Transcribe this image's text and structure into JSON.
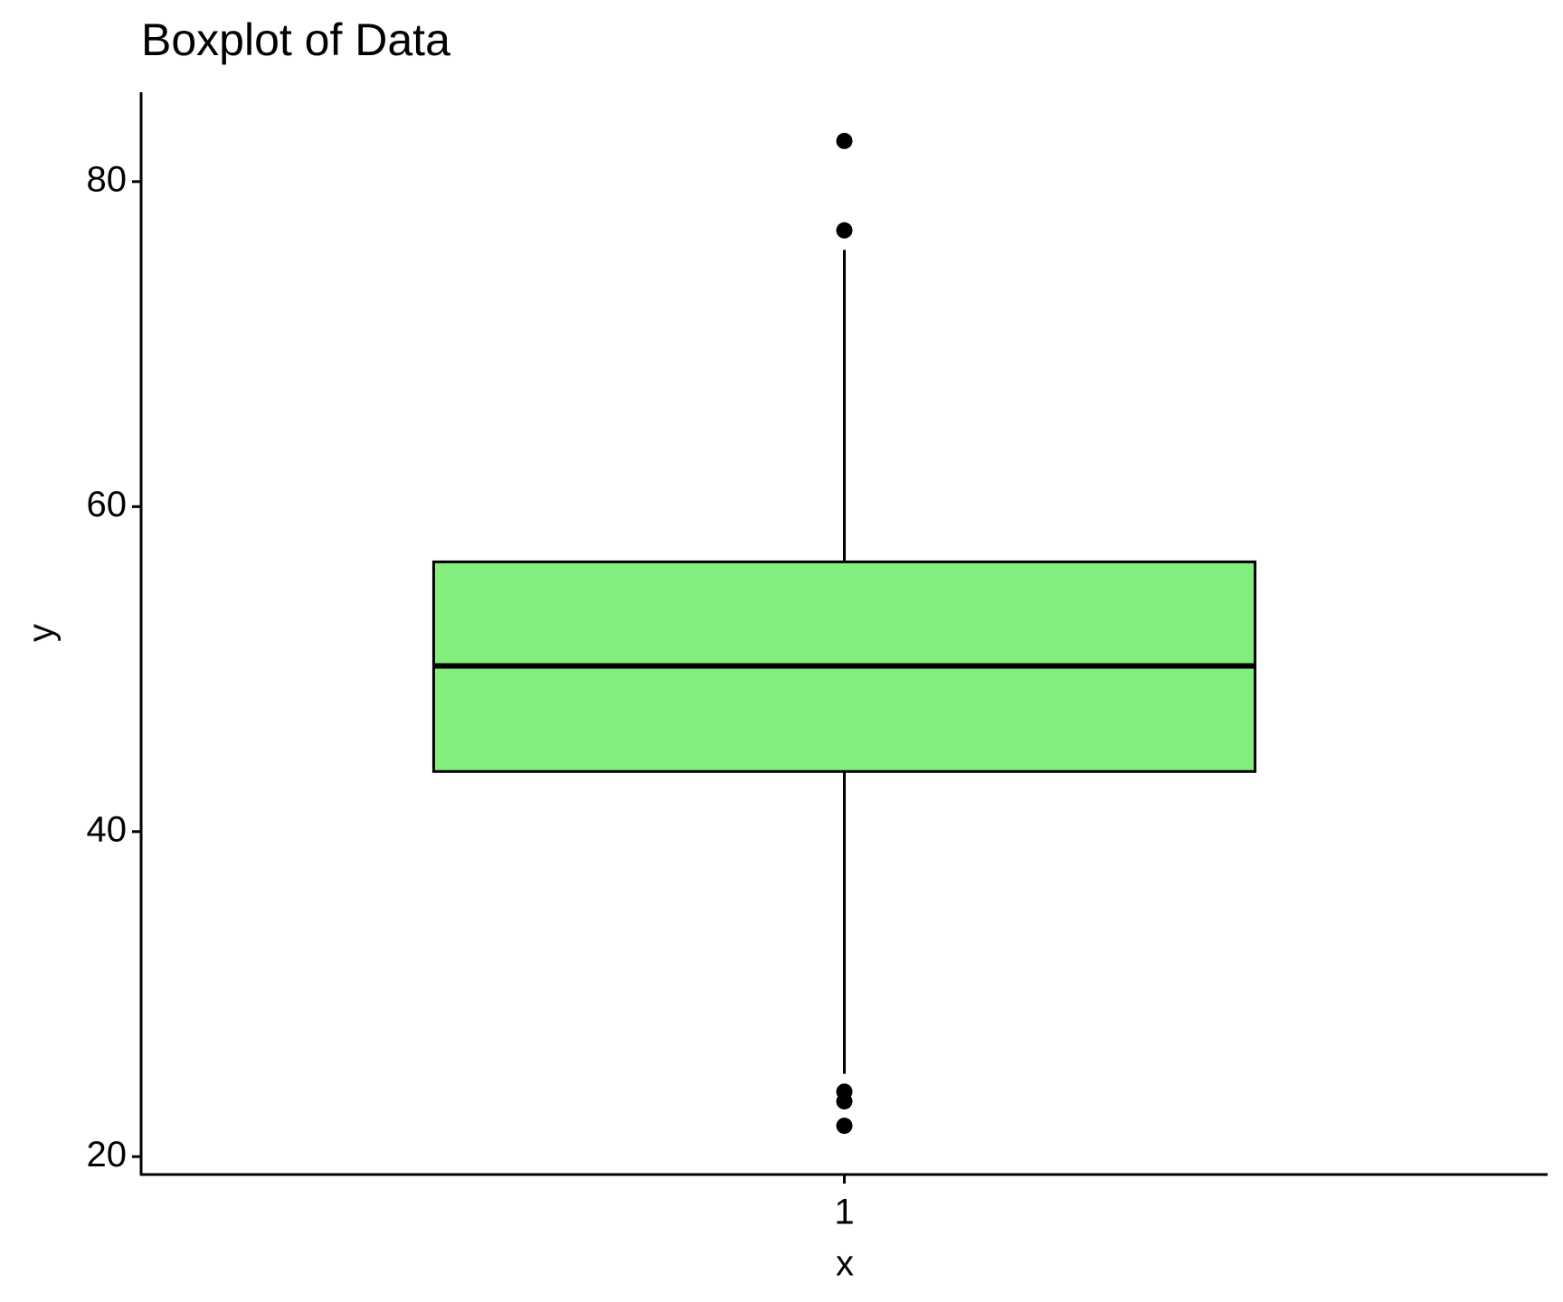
{
  "chart_data": {
    "type": "box",
    "title": "Boxplot of Data",
    "x_label": "x",
    "y_label": "y",
    "categories": [
      "1"
    ],
    "boxes": [
      {
        "whisker_low": 25.1,
        "q1": 43.7,
        "median": 50.2,
        "q3": 56.6,
        "whisker_high": 75.8,
        "outliers": [
          82.5,
          77.0,
          24.0,
          23.4,
          21.9
        ]
      }
    ],
    "color": "#83ed7d",
    "ylim": [
      18.9,
      85.5
    ],
    "yticks": [
      20,
      40,
      60,
      80
    ],
    "grid": false
  }
}
